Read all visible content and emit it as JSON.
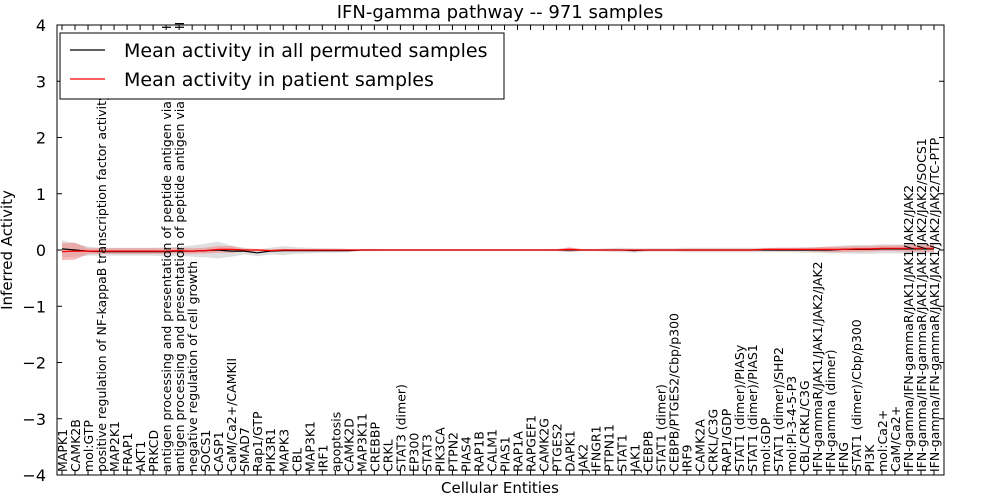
{
  "chart_data": {
    "type": "line",
    "title": "IFN-gamma pathway -- 971 samples",
    "xlabel": "Cellular Entities",
    "ylabel": "Inferred Activity",
    "ylim": [
      -4,
      4
    ],
    "yticks": [
      -4,
      -3,
      -2,
      -1,
      0,
      1,
      2,
      3,
      4
    ],
    "ytick_labels": [
      "−4",
      "−3",
      "−2",
      "−1",
      "0",
      "1",
      "2",
      "3",
      "4"
    ],
    "legend": {
      "placement": "top-left",
      "entries": [
        {
          "label": "Mean activity in all permuted samples",
          "color": "#000000"
        },
        {
          "label": "Mean activity in patient samples",
          "color": "#ff0000"
        }
      ]
    },
    "categories": [
      "MAPK1",
      "CAMK2B",
      "mol:GTP",
      "positive regulation of NF-kappaB transcription factor activity",
      "MAP2K1",
      "FRAP1",
      "AKT1",
      "PRKCD",
      "antigen processing and presentation of peptide antigen via MHC class I",
      "antigen processing and presentation of peptide antigen via MHC class II",
      "negative regulation of cell growth",
      "SOCS1",
      "CASP1",
      "CaM/Ca2+/CAMKII",
      "SMAD7",
      "Rap1/GTP",
      "PIK3R1",
      "MAPK3",
      "CBL",
      "MAP3K1",
      "IRF1",
      "apoptosis",
      "CAMK2D",
      "MAP3K11",
      "CREBBP",
      "CRKL",
      "STAT3 (dimer)",
      "EP300",
      "STAT3",
      "PIK3CA",
      "PTPN2",
      "PIAS4",
      "RAP1B",
      "CALM1",
      "PIAS1",
      "RAP1A",
      "RAPGEF1",
      "CAMK2G",
      "PTGES2",
      "DAPK1",
      "JAK2",
      "IFNGR1",
      "PTPN11",
      "STAT1",
      "JAK1",
      "CEBPB",
      "STAT1 (dimer)",
      "CEBPB/PTGES2/Cbp/p300",
      "IRF9",
      "CAMK2A",
      "CRKL/C3G",
      "RAP1/GDP",
      "STAT1 (dimer)/PIASy",
      "STAT1 (dimer)/PIAS1",
      "mol:GDP",
      "STAT1 (dimer)/SHP2",
      "mol:PI-3-4-5-P3",
      "CBL/CRKL/C3G",
      "IFN-gammaR/JAK1/JAK1/JAK2/JAK2",
      "IFN-gamma (dimer)",
      "IFNG",
      "STAT1 (dimer)/Cbp/p300",
      "PI3K",
      "mol:Ca2+",
      "CaM/Ca2+",
      "IFN-gamma/IFN-gammaR/JAK1/JAK1/JAK2/JAK2",
      "IFN-gamma/IFN-gammaR/JAK1/JAK1/JAK2/JAK2/SOCS1",
      "IFN-gamma/IFN-gammaR/JAK1/JAK1/JAK2/JAK2/TC-PTP"
    ],
    "series": [
      {
        "name": "Mean activity in all permuted samples",
        "color": "#000000",
        "band_color": "#bdbdbd",
        "values": [
          0.02,
          0.0,
          -0.02,
          -0.03,
          -0.03,
          -0.03,
          -0.03,
          -0.03,
          -0.03,
          -0.02,
          -0.02,
          -0.01,
          0.0,
          -0.02,
          -0.02,
          -0.05,
          -0.02,
          -0.01,
          -0.01,
          -0.01,
          -0.01,
          -0.01,
          -0.01,
          0.0,
          0.0,
          0.0,
          0.0,
          0.0,
          0.0,
          0.0,
          0.0,
          0.0,
          0.0,
          0.0,
          0.0,
          0.0,
          0.0,
          0.0,
          0.0,
          0.0,
          0.0,
          0.0,
          0.0,
          0.0,
          -0.01,
          0.0,
          0.0,
          0.0,
          0.0,
          0.0,
          0.0,
          0.0,
          0.0,
          0.0,
          0.0,
          0.0,
          0.0,
          0.0,
          0.0,
          0.0,
          0.01,
          0.01,
          0.01,
          0.02,
          0.02,
          0.02,
          0.02,
          0.02
        ],
        "spread": [
          0.15,
          0.12,
          0.08,
          0.07,
          0.07,
          0.07,
          0.07,
          0.07,
          0.08,
          0.08,
          0.1,
          0.12,
          0.15,
          0.1,
          0.06,
          0.06,
          0.06,
          0.08,
          0.06,
          0.05,
          0.04,
          0.04,
          0.03,
          0.02,
          0.02,
          0.01,
          0.01,
          0.01,
          0.01,
          0.01,
          0.01,
          0.01,
          0.01,
          0.01,
          0.01,
          0.01,
          0.01,
          0.01,
          0.02,
          0.04,
          0.02,
          0.02,
          0.03,
          0.04,
          0.04,
          0.03,
          0.03,
          0.03,
          0.04,
          0.04,
          0.04,
          0.04,
          0.04,
          0.04,
          0.04,
          0.04,
          0.04,
          0.05,
          0.05,
          0.06,
          0.07,
          0.08,
          0.08,
          0.08,
          0.08,
          0.08,
          0.08,
          0.08
        ]
      },
      {
        "name": "Mean activity in patient samples",
        "color": "#ff0000",
        "band_color": "#f08080",
        "values": [
          -0.03,
          -0.02,
          -0.02,
          -0.02,
          -0.02,
          -0.02,
          -0.02,
          -0.02,
          -0.02,
          -0.01,
          -0.02,
          -0.01,
          0.01,
          0.01,
          0.0,
          0.0,
          -0.01,
          0.0,
          0.0,
          0.0,
          0.0,
          0.0,
          0.0,
          0.0,
          0.0,
          0.0,
          0.0,
          0.0,
          0.0,
          0.0,
          0.0,
          0.0,
          0.0,
          0.0,
          0.0,
          0.0,
          0.0,
          0.0,
          0.0,
          0.01,
          0.0,
          0.0,
          0.0,
          0.0,
          0.0,
          0.0,
          0.0,
          0.0,
          0.0,
          0.0,
          0.0,
          0.0,
          0.0,
          0.0,
          0.01,
          0.01,
          0.01,
          0.01,
          0.01,
          0.01,
          0.01,
          0.02,
          0.02,
          0.03,
          0.03,
          0.03,
          0.03,
          0.03
        ],
        "spread": [
          0.15,
          0.15,
          0.05,
          0.05,
          0.05,
          0.05,
          0.05,
          0.05,
          0.05,
          0.05,
          0.05,
          0.05,
          0.06,
          0.06,
          0.02,
          0.02,
          0.02,
          0.02,
          0.01,
          0.01,
          0.01,
          0.01,
          0.01,
          0.01,
          0.01,
          0.01,
          0.01,
          0.01,
          0.01,
          0.01,
          0.01,
          0.01,
          0.01,
          0.01,
          0.01,
          0.01,
          0.01,
          0.01,
          0.01,
          0.04,
          0.01,
          0.01,
          0.01,
          0.01,
          0.01,
          0.01,
          0.01,
          0.01,
          0.02,
          0.02,
          0.02,
          0.02,
          0.02,
          0.02,
          0.02,
          0.03,
          0.03,
          0.03,
          0.04,
          0.05,
          0.05,
          0.05,
          0.05,
          0.05,
          0.05,
          0.06,
          0.06,
          0.06
        ]
      }
    ]
  }
}
